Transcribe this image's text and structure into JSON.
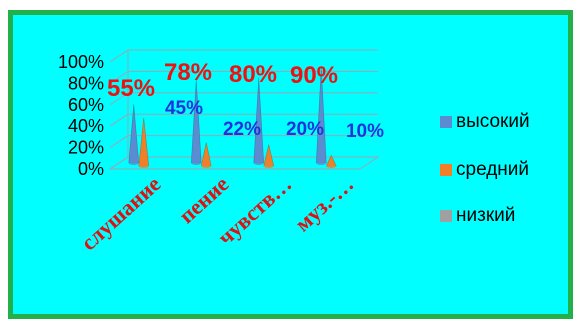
{
  "chart_data": {
    "type": "bar",
    "categories": [
      "слушание",
      "пение",
      "чувств…",
      "муз.-…"
    ],
    "series": [
      {
        "name": "высокий",
        "values": [
          55,
          78,
          80,
          90
        ],
        "color": "#5b8bd0"
      },
      {
        "name": "средний",
        "values": [
          45,
          22,
          20,
          10
        ],
        "color": "#f07f2a"
      },
      {
        "name": "низкий",
        "values": [
          0,
          0,
          0,
          0
        ],
        "color": "#a0a0a0"
      }
    ],
    "y_ticks": [
      "0%",
      "20%",
      "40%",
      "60%",
      "80%",
      "100%"
    ],
    "ylim": [
      0,
      100
    ],
    "grid": true,
    "legend_position": "right",
    "labels_high": [
      "55%",
      "78%",
      "80%",
      "90%"
    ],
    "labels_mid": [
      "45%",
      "22%",
      "20%",
      "10%"
    ],
    "label_colors": {
      "high": "#ee1111",
      "mid": "#2233dd",
      "category": "#dd1111"
    }
  }
}
